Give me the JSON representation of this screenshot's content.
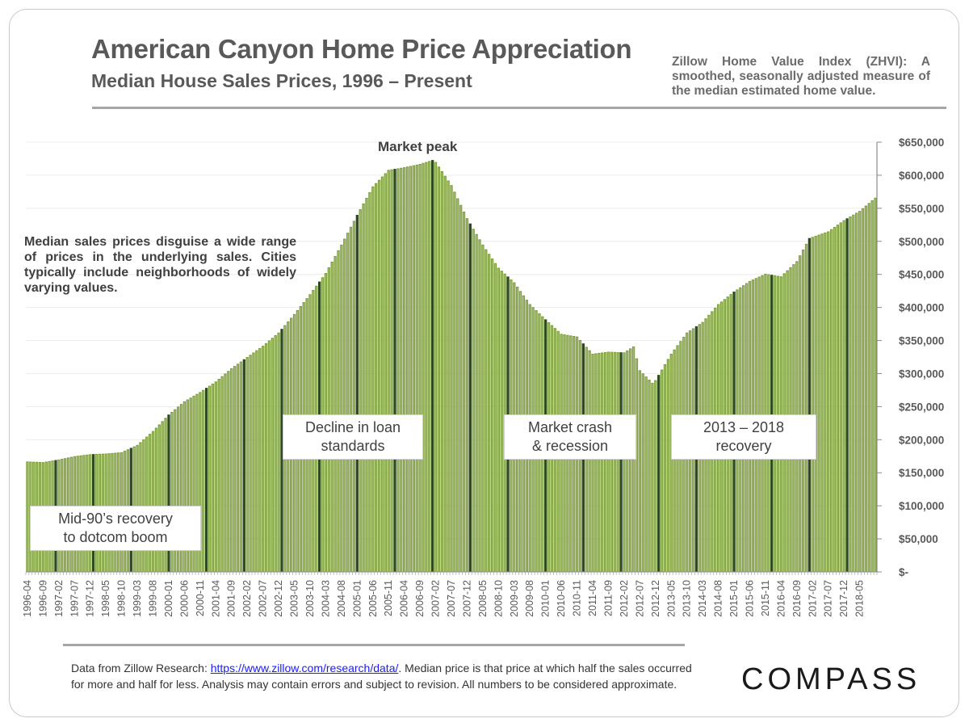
{
  "header": {
    "title": "American Canyon Home Price Appreciation",
    "subtitle": "Median House Sales Prices, 1996 – Present",
    "zhvi_note": "Zillow Home Value Index (ZHVI): A smoothed, seasonally adjusted measure of the median estimated home value."
  },
  "annotations": {
    "note": "Median sales prices disguise a wide range of prices in the underlying sales. Cities typically include neighborhoods of widely varying values.",
    "peak": "Market peak",
    "callouts": [
      {
        "line1": "Mid-90’s recovery",
        "line2": "to dotcom boom"
      },
      {
        "line1": "Decline in loan",
        "line2": "standards"
      },
      {
        "line1": "Market crash",
        "line2": "& recession"
      },
      {
        "line1": "2013 – 2018",
        "line2": "recovery"
      }
    ]
  },
  "footer": {
    "text_before_link": "Data from Zillow Research: ",
    "link": "https://www.zillow.com/research/data/",
    "text_after_link": ". Median price is that price at which half the sales occurred for more and half for less. Analysis may contain errors and subject to revision. All numbers to be considered approximate.",
    "logo": "COMPASS"
  },
  "colors": {
    "bar_light": "#a9c46c",
    "bar_mid": "#7a9a3c",
    "bar_dark": "#2d4a1e",
    "gridline": "#ececec",
    "axis": "#8c8c8c"
  },
  "chart_data": {
    "type": "bar",
    "title": "American Canyon Home Price Appreciation",
    "subtitle": "Median House Sales Prices, 1996 – Present",
    "xlabel": "",
    "ylabel": "",
    "frequency": "monthly",
    "x_start": "1996-04",
    "x_end": "2018-10",
    "ylim": [
      0,
      650000
    ],
    "y_ticks": [
      0,
      50000,
      100000,
      150000,
      200000,
      250000,
      300000,
      350000,
      400000,
      450000,
      500000,
      550000,
      600000,
      650000
    ],
    "y_tick_labels": [
      "$-",
      "$50,000",
      "$100,000",
      "$150,000",
      "$200,000",
      "$250,000",
      "$300,000",
      "$350,000",
      "$400,000",
      "$450,000",
      "$500,000",
      "$550,000",
      "$600,000",
      "$650,000"
    ],
    "y_axis_side": "right",
    "grid": true,
    "legend": "none",
    "x_tick_labels": [
      "1996-04",
      "1996-09",
      "1997-02",
      "1997-07",
      "1997-12",
      "1998-05",
      "1998-10",
      "1999-03",
      "1999-08",
      "2000-01",
      "2000-06",
      "2000-11",
      "2001-04",
      "2001-09",
      "2002-02",
      "2002-07",
      "2002-12",
      "2003-05",
      "2003-10",
      "2004-03",
      "2004-08",
      "2005-01",
      "2005-06",
      "2005-11",
      "2006-04",
      "2006-09",
      "2007-02",
      "2007-07",
      "2007-12",
      "2008-05",
      "2008-10",
      "2009-03",
      "2009-08",
      "2010-01",
      "2010-06",
      "2010-11",
      "2011-04",
      "2011-09",
      "2012-02",
      "2012-07",
      "2012-12",
      "2013-05",
      "2013-10",
      "2014-03",
      "2014-08",
      "2015-01",
      "2015-06",
      "2015-11",
      "2016-04",
      "2016-09",
      "2017-02",
      "2017-07",
      "2017-12",
      "2018-05"
    ],
    "key_points": [
      {
        "x": "1996-04",
        "y": 167000
      },
      {
        "x": "1996-09",
        "y": 166000
      },
      {
        "x": "1997-02",
        "y": 170000
      },
      {
        "x": "1997-07",
        "y": 175000
      },
      {
        "x": "1997-12",
        "y": 178000
      },
      {
        "x": "1998-05",
        "y": 179000
      },
      {
        "x": "1998-10",
        "y": 181000
      },
      {
        "x": "1999-03",
        "y": 192000
      },
      {
        "x": "1999-08",
        "y": 213000
      },
      {
        "x": "2000-01",
        "y": 238000
      },
      {
        "x": "2000-06",
        "y": 258000
      },
      {
        "x": "2000-11",
        "y": 272000
      },
      {
        "x": "2001-04",
        "y": 288000
      },
      {
        "x": "2001-09",
        "y": 308000
      },
      {
        "x": "2002-02",
        "y": 325000
      },
      {
        "x": "2002-07",
        "y": 342000
      },
      {
        "x": "2002-12",
        "y": 362000
      },
      {
        "x": "2003-05",
        "y": 390000
      },
      {
        "x": "2003-10",
        "y": 420000
      },
      {
        "x": "2004-03",
        "y": 452000
      },
      {
        "x": "2004-08",
        "y": 495000
      },
      {
        "x": "2005-01",
        "y": 540000
      },
      {
        "x": "2005-06",
        "y": 583000
      },
      {
        "x": "2005-11",
        "y": 608000
      },
      {
        "x": "2006-04",
        "y": 612000
      },
      {
        "x": "2006-09",
        "y": 617000
      },
      {
        "x": "2007-01",
        "y": 623000
      },
      {
        "x": "2007-02",
        "y": 620000
      },
      {
        "x": "2007-07",
        "y": 585000
      },
      {
        "x": "2007-12",
        "y": 535000
      },
      {
        "x": "2008-05",
        "y": 495000
      },
      {
        "x": "2008-10",
        "y": 460000
      },
      {
        "x": "2009-03",
        "y": 438000
      },
      {
        "x": "2009-08",
        "y": 405000
      },
      {
        "x": "2010-01",
        "y": 382000
      },
      {
        "x": "2010-06",
        "y": 360000
      },
      {
        "x": "2010-11",
        "y": 356000
      },
      {
        "x": "2011-04",
        "y": 330000
      },
      {
        "x": "2011-09",
        "y": 333000
      },
      {
        "x": "2012-02",
        "y": 332000
      },
      {
        "x": "2012-05",
        "y": 341000
      },
      {
        "x": "2012-07",
        "y": 305000
      },
      {
        "x": "2012-11",
        "y": 286000
      },
      {
        "x": "2012-12",
        "y": 290000
      },
      {
        "x": "2013-05",
        "y": 330000
      },
      {
        "x": "2013-10",
        "y": 362000
      },
      {
        "x": "2014-03",
        "y": 378000
      },
      {
        "x": "2014-08",
        "y": 405000
      },
      {
        "x": "2015-01",
        "y": 424000
      },
      {
        "x": "2015-06",
        "y": 440000
      },
      {
        "x": "2015-11",
        "y": 451000
      },
      {
        "x": "2016-04",
        "y": 447000
      },
      {
        "x": "2016-09",
        "y": 470000
      },
      {
        "x": "2017-01",
        "y": 505000
      },
      {
        "x": "2017-07",
        "y": 515000
      },
      {
        "x": "2017-12",
        "y": 532000
      },
      {
        "x": "2018-05",
        "y": 546000
      },
      {
        "x": "2018-10",
        "y": 566000
      }
    ]
  }
}
